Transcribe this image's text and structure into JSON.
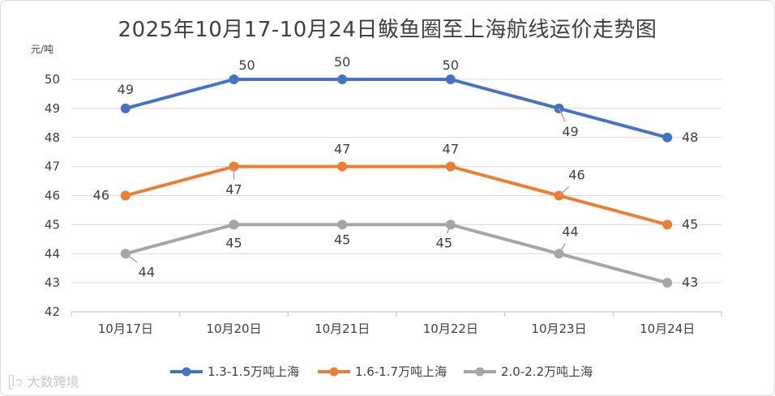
{
  "chart_data": {
    "type": "line",
    "title": "2025年10月17-10月24日鲅鱼圈至上海航线运价走势图",
    "ylabel": "元/吨",
    "xlabel": "",
    "categories": [
      "10月17日",
      "10月20日",
      "10月21日",
      "10月22日",
      "10月23日",
      "10月24日"
    ],
    "ylim": [
      42,
      50
    ],
    "yticks": [
      42,
      43,
      44,
      45,
      46,
      47,
      48,
      49,
      50
    ],
    "grid": true,
    "legend_position": "bottom",
    "series": [
      {
        "name": "1.3-1.5万吨上海",
        "color": "#4472c4",
        "values": [
          49,
          50,
          50,
          50,
          49,
          48
        ]
      },
      {
        "name": "1.6-1.7万吨上海",
        "color": "#ed7d31",
        "values": [
          46,
          47,
          47,
          47,
          46,
          45
        ]
      },
      {
        "name": "2.0-2.2万吨上海",
        "color": "#a5a5a5",
        "values": [
          44,
          45,
          45,
          45,
          44,
          43
        ]
      }
    ]
  },
  "watermark": "大数跨境"
}
